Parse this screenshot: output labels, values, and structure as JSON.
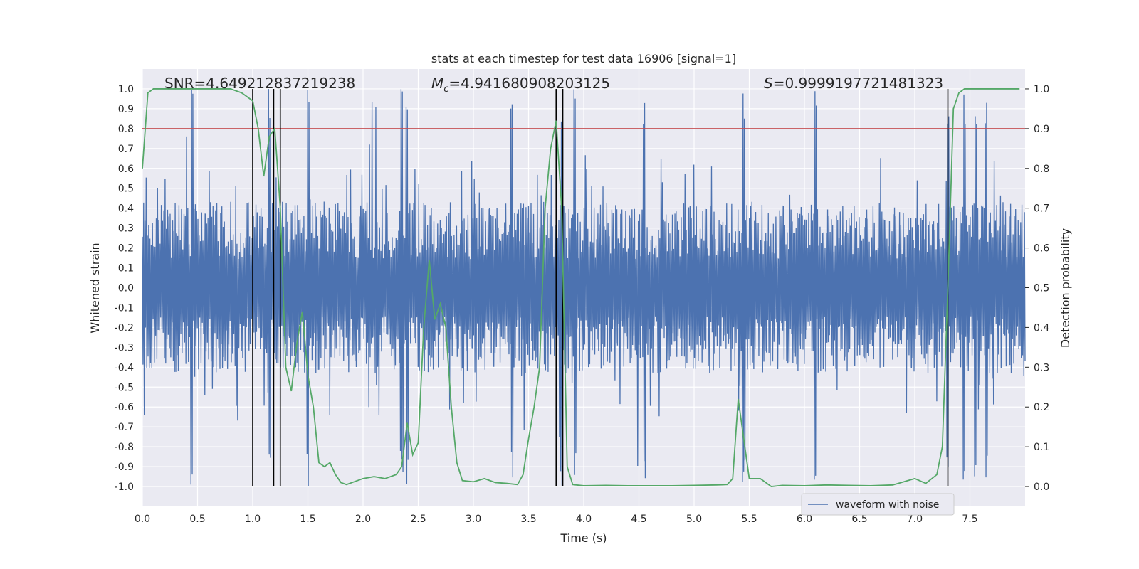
{
  "chart_data": {
    "type": "line",
    "title": "stats at each timestep for test data 16906 [signal=1]",
    "xlabel": "Time (s)",
    "ylabel": "Whitened strain",
    "ylabel_right": "Detection probability",
    "xlim": [
      0.0,
      8.0
    ],
    "ylim": [
      -1.1,
      1.1
    ],
    "ylim_right": [
      -0.05,
      1.05
    ],
    "x_ticks": [
      "0.0",
      "0.5",
      "1.0",
      "1.5",
      "2.0",
      "2.5",
      "3.0",
      "3.5",
      "4.0",
      "4.5",
      "5.0",
      "5.5",
      "6.0",
      "6.5",
      "7.0",
      "7.5"
    ],
    "y_ticks": [
      "1.0",
      "0.9",
      "0.8",
      "0.7",
      "0.6",
      "0.5",
      "0.4",
      "0.3",
      "0.2",
      "0.1",
      "0.0",
      "-0.1",
      "-0.2",
      "-0.3",
      "-0.4",
      "-0.5",
      "-0.6",
      "-0.7",
      "-0.8",
      "-0.9",
      "-1.0"
    ],
    "y_ticks_right": [
      "1.0",
      "0.9",
      "0.8",
      "0.7",
      "0.6",
      "0.5",
      "0.4",
      "0.3",
      "0.2",
      "0.1",
      "0.0"
    ],
    "grid": true,
    "legend": {
      "label": "waveform with noise",
      "placement": "lower-right"
    },
    "annotations": {
      "snr": "SNR=4.649212837219238",
      "mc_symbol": "M",
      "mc_sub": "c",
      "mc_value": "=4.941680908203125",
      "s_symbol": "S",
      "s_value": "=0.9999197721481323"
    },
    "threshold": {
      "y_right": 0.9,
      "color": "#c44e52"
    },
    "vertical_markers": [
      1.0,
      1.19,
      1.25,
      3.75,
      3.81,
      7.3
    ],
    "waveform": {
      "name": "waveform with noise",
      "color": "#4c72b0",
      "duration": 8.0,
      "n_samples": 1400,
      "envelope": 0.32,
      "max_abs": 1.0,
      "spike_times": [
        0.45,
        1.15,
        1.5,
        2.35,
        2.4,
        3.35,
        3.8,
        3.92,
        4.55,
        5.45,
        6.1,
        7.3,
        7.45,
        7.55,
        7.65
      ]
    },
    "probability": {
      "name": "detection probability",
      "color": "#55a868",
      "x": [
        0.0,
        0.05,
        0.1,
        0.2,
        0.3,
        0.5,
        0.8,
        0.9,
        0.95,
        1.0,
        1.05,
        1.1,
        1.15,
        1.2,
        1.25,
        1.3,
        1.35,
        1.4,
        1.45,
        1.5,
        1.55,
        1.6,
        1.65,
        1.7,
        1.75,
        1.8,
        1.85,
        1.9,
        2.0,
        2.1,
        2.2,
        2.3,
        2.35,
        2.4,
        2.45,
        2.5,
        2.55,
        2.6,
        2.65,
        2.7,
        2.75,
        2.8,
        2.85,
        2.9,
        3.0,
        3.1,
        3.2,
        3.3,
        3.4,
        3.45,
        3.5,
        3.55,
        3.6,
        3.65,
        3.7,
        3.75,
        3.8,
        3.85,
        3.9,
        4.0,
        4.2,
        4.4,
        4.6,
        4.8,
        5.0,
        5.2,
        5.3,
        5.35,
        5.4,
        5.45,
        5.5,
        5.6,
        5.7,
        5.8,
        6.0,
        6.2,
        6.4,
        6.6,
        6.8,
        7.0,
        7.1,
        7.2,
        7.25,
        7.3,
        7.35,
        7.4,
        7.45,
        7.5,
        7.6,
        7.7,
        7.95
      ],
      "y": [
        0.8,
        0.99,
        1.0,
        1.0,
        1.0,
        1.0,
        1.0,
        0.99,
        0.98,
        0.97,
        0.9,
        0.78,
        0.88,
        0.9,
        0.7,
        0.3,
        0.24,
        0.36,
        0.44,
        0.28,
        0.2,
        0.06,
        0.05,
        0.06,
        0.03,
        0.01,
        0.005,
        0.01,
        0.02,
        0.025,
        0.02,
        0.03,
        0.05,
        0.16,
        0.08,
        0.11,
        0.4,
        0.57,
        0.42,
        0.46,
        0.4,
        0.2,
        0.06,
        0.015,
        0.012,
        0.02,
        0.01,
        0.008,
        0.005,
        0.03,
        0.12,
        0.2,
        0.3,
        0.7,
        0.85,
        0.92,
        0.7,
        0.05,
        0.005,
        0.002,
        0.003,
        0.002,
        0.002,
        0.002,
        0.003,
        0.004,
        0.005,
        0.02,
        0.22,
        0.12,
        0.02,
        0.02,
        0.0,
        0.003,
        0.002,
        0.004,
        0.003,
        0.002,
        0.004,
        0.02,
        0.008,
        0.03,
        0.1,
        0.5,
        0.95,
        0.99,
        1.0,
        1.0,
        1.0,
        1.0,
        1.0
      ]
    }
  }
}
